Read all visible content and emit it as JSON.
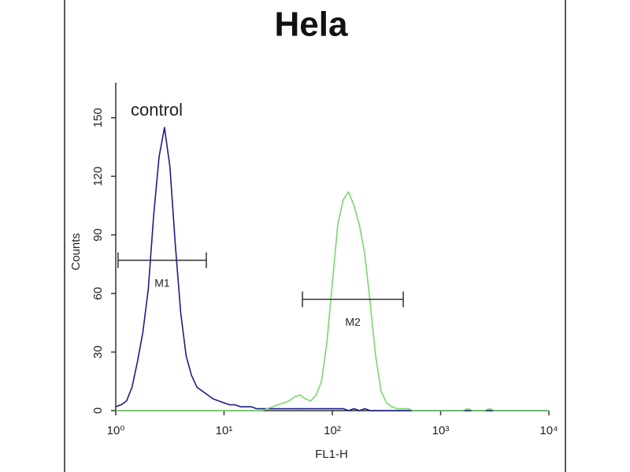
{
  "chart_data": {
    "type": "line",
    "title": "Hela",
    "xlabel": "FL1-H",
    "ylabel": "Counts",
    "xscale": "log",
    "xlim": [
      1,
      10000
    ],
    "ylim": [
      0,
      168
    ],
    "xticks": [
      {
        "value": 1,
        "label": "10⁰"
      },
      {
        "value": 10,
        "label": "10¹"
      },
      {
        "value": 100,
        "label": "10²"
      },
      {
        "value": 1000,
        "label": "10³"
      },
      {
        "value": 10000,
        "label": "10⁴"
      }
    ],
    "yticks": [
      0,
      30,
      60,
      90,
      120,
      150
    ],
    "x": [
      1,
      1.122,
      1.259,
      1.413,
      1.585,
      1.778,
      1.995,
      2.239,
      2.512,
      2.818,
      3.162,
      3.548,
      3.981,
      4.467,
      5.012,
      5.623,
      6.31,
      7.079,
      7.943,
      8.913,
      10,
      11.22,
      12.59,
      14.13,
      15.85,
      17.78,
      19.95,
      22.39,
      25.12,
      28.18,
      31.62,
      35.48,
      39.81,
      44.67,
      50.12,
      56.23,
      63.1,
      70.79,
      79.43,
      89.13,
      100,
      112.2,
      125.9,
      141.3,
      158.5,
      177.8,
      199.5,
      223.9,
      251.2,
      281.8,
      316.2,
      354.8,
      398.1,
      446.7,
      501.2,
      562.3,
      631,
      707.9,
      794.3,
      891.3,
      1000,
      1122,
      1259,
      1413,
      1585,
      1778,
      1995,
      2239,
      2512,
      2818,
      3162,
      3548,
      3981,
      4467,
      5012,
      5623,
      6310,
      7079,
      7943,
      8913,
      10000
    ],
    "series": [
      {
        "name": "control",
        "color": "#1c1c8c",
        "values": [
          2,
          3,
          5,
          12,
          25,
          40,
          62,
          100,
          130,
          145,
          125,
          85,
          50,
          28,
          18,
          12,
          10,
          8,
          6,
          5,
          4,
          3,
          3,
          2,
          2,
          2,
          1,
          1,
          1,
          1,
          1,
          1,
          1,
          1,
          1,
          1,
          1,
          1,
          1,
          1,
          1,
          1,
          1,
          0,
          1,
          0,
          1,
          0,
          0,
          0,
          0,
          0,
          0,
          0,
          0,
          0,
          0,
          0,
          0,
          0,
          0,
          0,
          0,
          0,
          0,
          0,
          0,
          0,
          0,
          0,
          0,
          0,
          0,
          0,
          0,
          0,
          0,
          0,
          0,
          0,
          0
        ]
      },
      {
        "color": "#78d86a",
        "values": [
          0,
          0,
          0,
          0,
          0,
          0,
          0,
          0,
          0,
          0,
          0,
          0,
          0,
          0,
          0,
          0,
          0,
          0,
          0,
          0,
          0,
          0,
          0,
          0,
          0,
          0,
          0,
          0,
          1,
          2,
          3,
          4,
          5,
          7,
          8,
          6,
          5,
          8,
          15,
          35,
          65,
          95,
          108,
          112,
          105,
          95,
          80,
          55,
          28,
          10,
          4,
          2,
          1,
          1,
          1,
          0,
          0,
          0,
          0,
          0,
          0,
          0,
          0,
          0,
          0,
          1,
          0,
          0,
          0,
          1,
          0,
          0,
          0,
          0,
          0,
          0,
          0,
          0,
          0,
          0,
          0
        ]
      }
    ],
    "markers": [
      {
        "label": "M1",
        "x": [
          1.05,
          6.86
        ],
        "y": 77
      },
      {
        "label": "M2",
        "x": [
          53,
          452
        ],
        "y": 57
      }
    ]
  }
}
